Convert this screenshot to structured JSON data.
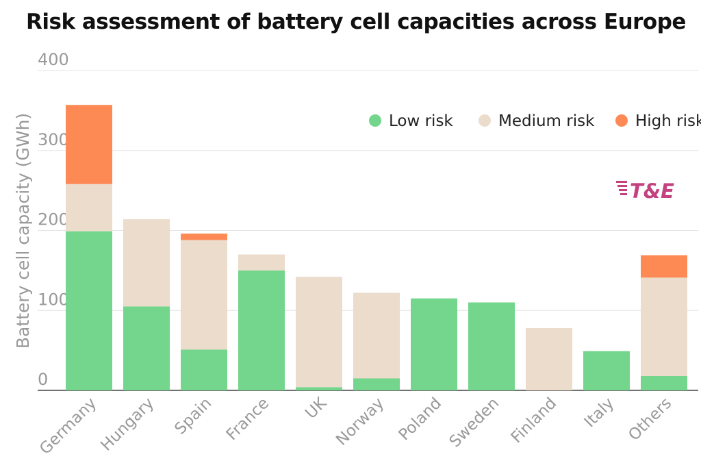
{
  "chart_data": {
    "type": "bar",
    "stacked": true,
    "title": "Risk assessment of battery cell capacities across Europe",
    "ylabel": "Battery cell capacity (GWh)",
    "xlabel": "",
    "ylim": [
      0,
      400
    ],
    "yticks": [
      0,
      100,
      200,
      300,
      400
    ],
    "grid": true,
    "legend_position": "top-right",
    "categories": [
      "Germany",
      "Hungary",
      "Spain",
      "France",
      "UK",
      "Norway",
      "Poland",
      "Sweden",
      "Finland",
      "Italy",
      "Others"
    ],
    "series": [
      {
        "name": "Low risk",
        "color": "#74d68c",
        "values": [
          199,
          105,
          51,
          150,
          4,
          15,
          115,
          110,
          0,
          49,
          18
        ]
      },
      {
        "name": "Medium risk",
        "color": "#ecdccb",
        "values": [
          59,
          109,
          137,
          20,
          138,
          107,
          0,
          0,
          78,
          0,
          123
        ]
      },
      {
        "name": "High risk",
        "color": "#fd8a55",
        "values": [
          99,
          0,
          8,
          0,
          0,
          0,
          0,
          0,
          0,
          0,
          28
        ]
      }
    ]
  },
  "logo": {
    "text": "T&E",
    "colors": [
      "#c2417e",
      "#f58a3e"
    ]
  }
}
